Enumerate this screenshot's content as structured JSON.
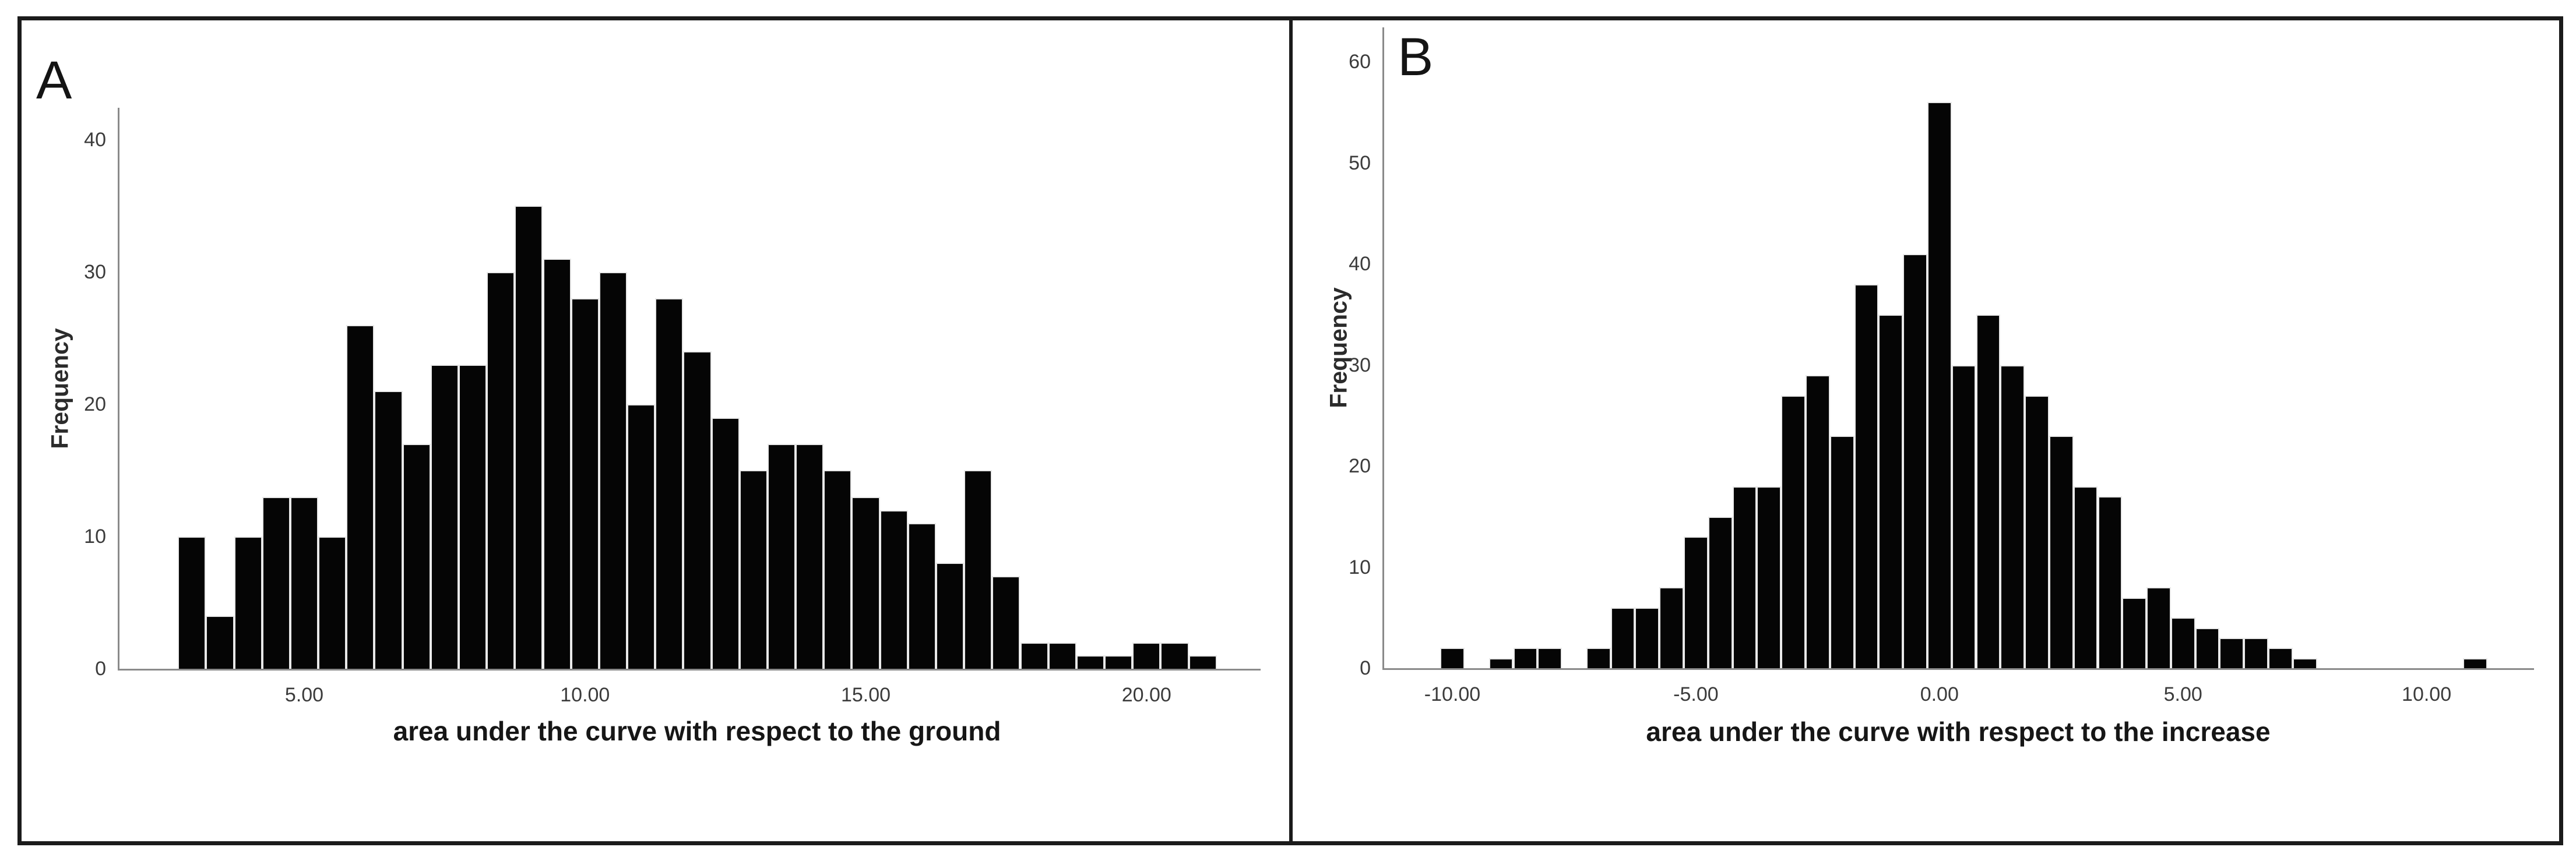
{
  "chart_data": [
    {
      "id": "A",
      "type": "bar",
      "panel_label": "A",
      "xlabel": "area under the curve with respect to the ground",
      "ylabel": "Frequency",
      "bin_start": 2.75,
      "bin_width": 0.5,
      "values": [
        10,
        4,
        10,
        13,
        13,
        10,
        26,
        21,
        17,
        23,
        23,
        30,
        35,
        31,
        28,
        30,
        20,
        28,
        24,
        19,
        15,
        17,
        17,
        15,
        13,
        12,
        11,
        8,
        15,
        7,
        2,
        2,
        1,
        1,
        2,
        2,
        1
      ],
      "x_ticks": [
        {
          "value": 5,
          "label": "5.00"
        },
        {
          "value": 10,
          "label": "10.00"
        },
        {
          "value": 15,
          "label": "15.00"
        },
        {
          "value": 20,
          "label": "20.00"
        }
      ],
      "y_ticks": [
        {
          "value": 0,
          "label": "0"
        },
        {
          "value": 10,
          "label": "10"
        },
        {
          "value": 20,
          "label": "20"
        },
        {
          "value": 30,
          "label": "30"
        },
        {
          "value": 40,
          "label": "40"
        }
      ],
      "xlim": [
        1.71,
        22.0
      ],
      "ylim": [
        0,
        42.4
      ],
      "grid": false,
      "legend": false,
      "bar_color": "#050505",
      "bar_outline_color": "#e9e9e9",
      "axis_color": "#8a8a8a"
    },
    {
      "id": "B",
      "type": "bar",
      "panel_label": "B",
      "xlabel": "area under the curve with respect to the increase",
      "ylabel": "Frequency",
      "bin_start": -10.25,
      "bin_width": 0.5,
      "values": [
        2,
        0,
        1,
        2,
        2,
        0,
        2,
        6,
        6,
        8,
        13,
        15,
        18,
        18,
        27,
        29,
        23,
        38,
        35,
        41,
        56,
        30,
        35,
        30,
        27,
        23,
        18,
        17,
        7,
        8,
        5,
        4,
        3,
        3,
        2,
        1,
        0,
        0,
        0,
        0,
        0,
        0,
        1
      ],
      "x_ticks": [
        {
          "value": -10,
          "label": "-10.00"
        },
        {
          "value": -5,
          "label": "-5.00"
        },
        {
          "value": 0,
          "label": "0.00"
        },
        {
          "value": 5,
          "label": "5.00"
        },
        {
          "value": 10,
          "label": "10.00"
        }
      ],
      "y_ticks": [
        {
          "value": 0,
          "label": "0"
        },
        {
          "value": 10,
          "label": "10"
        },
        {
          "value": 20,
          "label": "20"
        },
        {
          "value": 30,
          "label": "30"
        },
        {
          "value": 40,
          "label": "40"
        },
        {
          "value": 50,
          "label": "50"
        },
        {
          "value": 60,
          "label": "60"
        }
      ],
      "xlim": [
        -11.4,
        12.17
      ],
      "ylim": [
        0,
        63.4
      ],
      "grid": false,
      "legend": false,
      "bar_color": "#050505",
      "bar_outline_color": "#e9e9e9",
      "axis_color": "#8a8a8a"
    }
  ]
}
